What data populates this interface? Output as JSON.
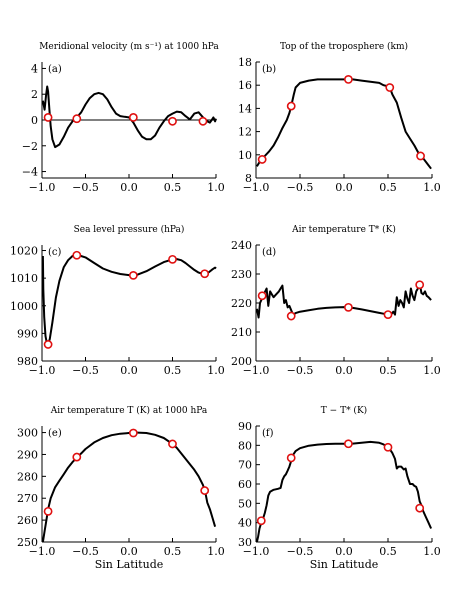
{
  "chart_data": [
    {
      "type": "line",
      "panel_label": "(a)",
      "title": "Meridional velocity (m s⁻¹) at 1000 hPa",
      "xlabel": "",
      "ylabel": "",
      "xlim": [
        -1.0,
        1.0
      ],
      "ylim": [
        -4.5,
        4.5
      ],
      "x_ticks": [
        -1.0,
        -0.5,
        0.0,
        0.5,
        1.0
      ],
      "x_tick_labels": [
        "−1.0",
        "−0.5",
        "0.0",
        "0.5",
        "1.0"
      ],
      "y_ticks": [
        -4,
        -2,
        0,
        2,
        4
      ],
      "y_tick_labels": [
        "−4",
        "−2",
        "0",
        "2",
        "4"
      ],
      "zero_line": true,
      "series": [
        {
          "x": [
            -0.99,
            -0.97,
            -0.955,
            -0.94,
            -0.93,
            -0.915,
            -0.9,
            -0.88,
            -0.85,
            -0.8,
            -0.75,
            -0.7,
            -0.65,
            -0.6,
            -0.55,
            -0.5,
            -0.45,
            -0.4,
            -0.35,
            -0.3,
            -0.25,
            -0.2,
            -0.15,
            -0.1,
            -0.05,
            0.0,
            0.05,
            0.1,
            0.15,
            0.2,
            0.25,
            0.3,
            0.35,
            0.4,
            0.45,
            0.5,
            0.55,
            0.6,
            0.65,
            0.7,
            0.75,
            0.8,
            0.85,
            0.88,
            0.9,
            0.93,
            0.95,
            0.97,
            0.99,
            1.0
          ],
          "y": [
            1.5,
            0.8,
            1.8,
            2.6,
            2.2,
            0.8,
            -0.5,
            -1.5,
            -2.1,
            -1.9,
            -1.3,
            -0.6,
            -0.1,
            0.2,
            0.6,
            1.2,
            1.7,
            2.0,
            2.1,
            2.0,
            1.6,
            1.0,
            0.5,
            0.3,
            0.25,
            0.2,
            -0.2,
            -0.8,
            -1.3,
            -1.5,
            -1.5,
            -1.2,
            -0.6,
            -0.1,
            0.3,
            0.5,
            0.65,
            0.6,
            0.3,
            0.05,
            0.5,
            0.6,
            0.2,
            -0.05,
            -0.1,
            -0.2,
            0.0,
            0.2,
            -0.1,
            0.1
          ]
        }
      ],
      "markers": [
        {
          "x": -0.93,
          "y": 0.2
        },
        {
          "x": -0.6,
          "y": 0.1
        },
        {
          "x": 0.05,
          "y": 0.2
        },
        {
          "x": 0.5,
          "y": -0.1
        },
        {
          "x": 0.85,
          "y": -0.1
        }
      ]
    },
    {
      "type": "line",
      "panel_label": "(b)",
      "title": "Top of the troposphere (km)",
      "xlabel": "",
      "ylabel": "",
      "xlim": [
        -1.0,
        1.0
      ],
      "ylim": [
        8,
        18
      ],
      "x_ticks": [
        -1.0,
        -0.5,
        0.0,
        0.5,
        1.0
      ],
      "x_tick_labels": [
        "−1.0",
        "−0.5",
        "0.0",
        "0.5",
        "1.0"
      ],
      "y_ticks": [
        8,
        10,
        12,
        14,
        16,
        18
      ],
      "y_tick_labels": [
        "8",
        "10",
        "12",
        "14",
        "16",
        "18"
      ],
      "zero_line": false,
      "series": [
        {
          "x": [
            -0.99,
            -0.95,
            -0.93,
            -0.9,
            -0.85,
            -0.8,
            -0.75,
            -0.7,
            -0.65,
            -0.62,
            -0.6,
            -0.57,
            -0.55,
            -0.5,
            -0.4,
            -0.3,
            -0.2,
            -0.1,
            0.0,
            0.05,
            0.1,
            0.2,
            0.3,
            0.4,
            0.45,
            0.5,
            0.52,
            0.55,
            0.6,
            0.65,
            0.7,
            0.75,
            0.8,
            0.85,
            0.9,
            0.95,
            0.99
          ],
          "y": [
            9.0,
            9.5,
            9.6,
            9.9,
            10.3,
            10.8,
            11.5,
            12.3,
            13.0,
            13.6,
            14.2,
            15.2,
            15.8,
            16.2,
            16.4,
            16.5,
            16.5,
            16.5,
            16.5,
            16.5,
            16.5,
            16.4,
            16.3,
            16.2,
            16.0,
            15.9,
            15.8,
            15.2,
            14.5,
            13.2,
            12.0,
            11.4,
            10.8,
            10.1,
            9.7,
            9.2,
            8.8
          ]
        }
      ],
      "markers": [
        {
          "x": -0.93,
          "y": 9.6
        },
        {
          "x": -0.6,
          "y": 14.2
        },
        {
          "x": 0.05,
          "y": 16.5
        },
        {
          "x": 0.52,
          "y": 15.8
        },
        {
          "x": 0.87,
          "y": 9.9
        }
      ]
    },
    {
      "type": "line",
      "panel_label": "(c)",
      "title": "Sea level pressure (hPa)",
      "xlabel": "",
      "ylabel": "",
      "xlim": [
        -1.0,
        1.0
      ],
      "ylim": [
        980,
        1022
      ],
      "x_ticks": [
        -1.0,
        -0.5,
        0.0,
        0.5,
        1.0
      ],
      "x_tick_labels": [
        "−1.0",
        "−0.5",
        "0.0",
        "0.5",
        "1.0"
      ],
      "y_ticks": [
        980,
        990,
        1000,
        1010,
        1020
      ],
      "y_tick_labels": [
        "980",
        "990",
        "1000",
        "1010",
        "1020"
      ],
      "zero_line": false,
      "series": [
        {
          "x": [
            -0.99,
            -0.985,
            -0.975,
            -0.96,
            -0.945,
            -0.93,
            -0.91,
            -0.88,
            -0.84,
            -0.8,
            -0.75,
            -0.7,
            -0.65,
            -0.6,
            -0.57,
            -0.5,
            -0.4,
            -0.3,
            -0.2,
            -0.1,
            0.0,
            0.05,
            0.1,
            0.2,
            0.3,
            0.4,
            0.5,
            0.55,
            0.6,
            0.65,
            0.7,
            0.75,
            0.8,
            0.85,
            0.88,
            0.92,
            0.96,
            0.99,
            1.0
          ],
          "y": [
            1018,
            1006,
            996,
            989,
            986.5,
            986,
            988,
            994,
            1003,
            1009,
            1014,
            1016.5,
            1018,
            1018.3,
            1018.2,
            1017.5,
            1015.5,
            1013.5,
            1012.3,
            1011.5,
            1011.1,
            1011.0,
            1011.3,
            1012.5,
            1014.2,
            1015.8,
            1016.8,
            1016.9,
            1016.5,
            1015.5,
            1014.2,
            1013.0,
            1012.0,
            1011.5,
            1011.6,
            1012.2,
            1013.2,
            1013.8,
            1013.5
          ]
        }
      ],
      "markers": [
        {
          "x": -0.93,
          "y": 986
        },
        {
          "x": -0.6,
          "y": 1018.3
        },
        {
          "x": 0.05,
          "y": 1011.0
        },
        {
          "x": 0.5,
          "y": 1016.8
        },
        {
          "x": 0.87,
          "y": 1011.6
        }
      ]
    },
    {
      "type": "line",
      "panel_label": "(d)",
      "title": "Air temperature T* (K)",
      "xlabel": "",
      "ylabel": "",
      "xlim": [
        -1.0,
        1.0
      ],
      "ylim": [
        200,
        240
      ],
      "x_ticks": [
        -1.0,
        -0.5,
        0.0,
        0.5,
        1.0
      ],
      "x_tick_labels": [
        "−1.0",
        "−0.5",
        "0.0",
        "0.5",
        "1.0"
      ],
      "y_ticks": [
        200,
        210,
        220,
        230,
        240
      ],
      "y_tick_labels": [
        "200",
        "210",
        "220",
        "230",
        "240"
      ],
      "zero_line": false,
      "series": [
        {
          "x": [
            -0.99,
            -0.97,
            -0.955,
            -0.94,
            -0.925,
            -0.91,
            -0.895,
            -0.88,
            -0.86,
            -0.84,
            -0.82,
            -0.8,
            -0.77,
            -0.74,
            -0.72,
            -0.7,
            -0.68,
            -0.66,
            -0.64,
            -0.62,
            -0.6,
            -0.58,
            -0.55,
            -0.5,
            -0.4,
            -0.3,
            -0.2,
            -0.1,
            0.0,
            0.05,
            0.1,
            0.2,
            0.3,
            0.4,
            0.45,
            0.5,
            0.52,
            0.54,
            0.56,
            0.58,
            0.6,
            0.62,
            0.64,
            0.66,
            0.68,
            0.7,
            0.72,
            0.74,
            0.76,
            0.78,
            0.8,
            0.82,
            0.84,
            0.86,
            0.88,
            0.9,
            0.92,
            0.94,
            0.96,
            0.99
          ],
          "y": [
            218,
            215,
            220,
            221,
            222,
            223,
            224,
            225,
            219,
            224,
            223,
            222,
            223,
            224,
            225,
            226,
            220,
            221,
            218.5,
            219,
            217.5,
            216,
            216.5,
            217,
            217.5,
            218,
            218.3,
            218.5,
            218.6,
            218.5,
            218.3,
            217.8,
            217.2,
            216.6,
            216.3,
            216,
            215.8,
            216.2,
            217,
            216,
            222,
            219,
            221,
            220,
            218.5,
            224,
            221.5,
            220,
            225,
            222.5,
            221,
            224,
            225,
            227,
            223.5,
            223,
            224,
            222.5,
            222,
            221
          ]
        }
      ],
      "markers": [
        {
          "x": -0.93,
          "y": 222.5
        },
        {
          "x": -0.6,
          "y": 215.5
        },
        {
          "x": 0.05,
          "y": 218.5
        },
        {
          "x": 0.5,
          "y": 216
        },
        {
          "x": 0.86,
          "y": 226.3
        }
      ]
    },
    {
      "type": "line",
      "panel_label": "(e)",
      "title": "Air temperature T (K) at 1000 hPa",
      "xlabel": "Sin Latitude",
      "ylabel": "",
      "xlim": [
        -1.0,
        1.0
      ],
      "ylim": [
        250,
        303
      ],
      "x_ticks": [
        -1.0,
        -0.5,
        0.0,
        0.5,
        1.0
      ],
      "x_tick_labels": [
        "−1.0",
        "−0.5",
        "0.0",
        "0.5",
        "1.0"
      ],
      "y_ticks": [
        250,
        260,
        270,
        280,
        290,
        300
      ],
      "y_tick_labels": [
        "250",
        "260",
        "270",
        "280",
        "290",
        "300"
      ],
      "zero_line": false,
      "series": [
        {
          "x": [
            -0.99,
            -0.97,
            -0.95,
            -0.93,
            -0.9,
            -0.85,
            -0.8,
            -0.75,
            -0.7,
            -0.65,
            -0.6,
            -0.55,
            -0.5,
            -0.4,
            -0.3,
            -0.2,
            -0.1,
            0.0,
            0.05,
            0.1,
            0.2,
            0.3,
            0.4,
            0.5,
            0.55,
            0.6,
            0.65,
            0.7,
            0.75,
            0.8,
            0.85,
            0.88,
            0.9,
            0.93,
            0.96,
            0.99
          ],
          "y": [
            250,
            255,
            260,
            265,
            270,
            275,
            278,
            281,
            284,
            286.5,
            288.5,
            290.5,
            292.5,
            295.5,
            297.5,
            298.8,
            299.5,
            299.8,
            300,
            300,
            299.8,
            299,
            297.5,
            294.8,
            293,
            290.5,
            288,
            285.5,
            283,
            280,
            276,
            272,
            268,
            265,
            261,
            257
          ]
        }
      ],
      "markers": [
        {
          "x": -0.93,
          "y": 264
        },
        {
          "x": -0.6,
          "y": 288.8
        },
        {
          "x": 0.05,
          "y": 299.8
        },
        {
          "x": 0.5,
          "y": 294.8
        },
        {
          "x": 0.87,
          "y": 273.5
        }
      ]
    },
    {
      "type": "line",
      "panel_label": "(f)",
      "title": "T − T* (K)",
      "xlabel": "Sin Latitude",
      "ylabel": "",
      "xlim": [
        -1.0,
        1.0
      ],
      "ylim": [
        30,
        90
      ],
      "x_ticks": [
        -1.0,
        -0.5,
        0.0,
        0.5,
        1.0
      ],
      "x_tick_labels": [
        "−1.0",
        "−0.5",
        "0.0",
        "0.5",
        "1.0"
      ],
      "y_ticks": [
        30,
        40,
        50,
        60,
        70,
        80,
        90
      ],
      "y_tick_labels": [
        "30",
        "40",
        "50",
        "60",
        "70",
        "80",
        "90"
      ],
      "zero_line": false,
      "series": [
        {
          "x": [
            -0.99,
            -0.975,
            -0.96,
            -0.94,
            -0.92,
            -0.9,
            -0.88,
            -0.86,
            -0.84,
            -0.8,
            -0.75,
            -0.72,
            -0.7,
            -0.68,
            -0.66,
            -0.64,
            -0.62,
            -0.6,
            -0.58,
            -0.55,
            -0.5,
            -0.4,
            -0.3,
            -0.2,
            -0.1,
            0.0,
            0.05,
            0.1,
            0.2,
            0.3,
            0.4,
            0.45,
            0.5,
            0.52,
            0.55,
            0.58,
            0.6,
            0.62,
            0.65,
            0.68,
            0.7,
            0.72,
            0.75,
            0.78,
            0.8,
            0.82,
            0.84,
            0.86,
            0.88,
            0.9,
            0.93,
            0.96,
            0.99
          ],
          "y": [
            30,
            33,
            37,
            40,
            42,
            45,
            49,
            54,
            56,
            57,
            57.5,
            58,
            62,
            64,
            65,
            67,
            69,
            72,
            75,
            77,
            78.5,
            79.8,
            80.4,
            80.7,
            80.8,
            80.8,
            80.8,
            80.9,
            81.3,
            81.8,
            81.3,
            80.5,
            79,
            78,
            76,
            73,
            68,
            69,
            69,
            67.5,
            68,
            64,
            60,
            60,
            59,
            58.5,
            56,
            51,
            49,
            46,
            43,
            40,
            37
          ]
        }
      ],
      "markers": [
        {
          "x": -0.94,
          "y": 41
        },
        {
          "x": -0.6,
          "y": 73.5
        },
        {
          "x": 0.05,
          "y": 80.8
        },
        {
          "x": 0.5,
          "y": 79
        },
        {
          "x": 0.86,
          "y": 47.5
        }
      ]
    }
  ],
  "style": {
    "line_color": "#000000",
    "marker_color": "#e01010",
    "marker_fill": "#ffffff"
  }
}
